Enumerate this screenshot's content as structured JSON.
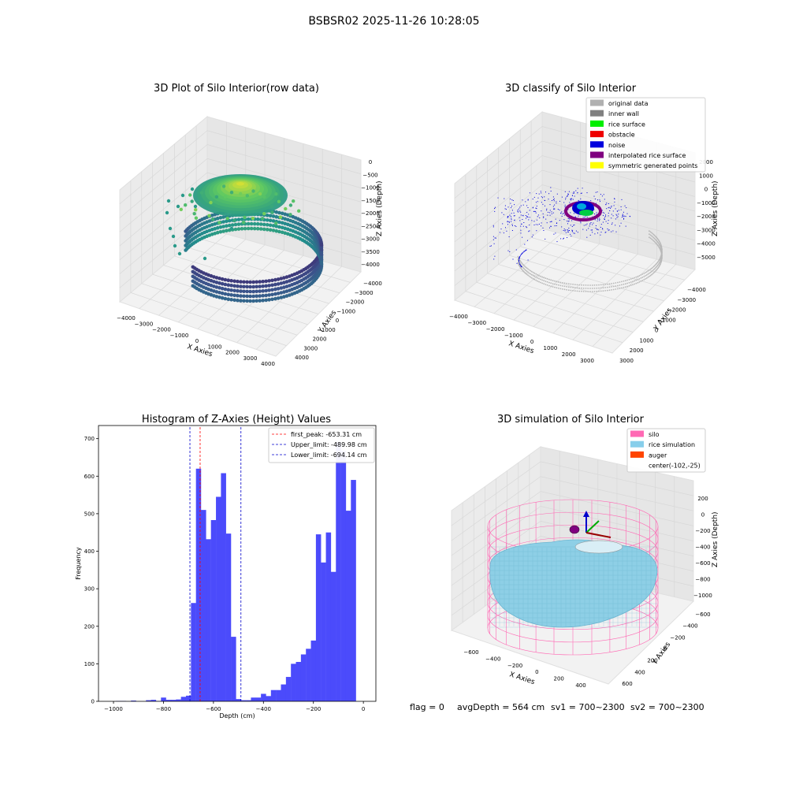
{
  "figure": {
    "suptitle": "BSBSR02 2025-11-26 10:28:05",
    "status": {
      "flag": "flag = 0",
      "avg_depth": "avgDepth = 564 cm",
      "sv1": "sv1 = 700~2300",
      "sv2": "sv2 = 700~2300"
    }
  },
  "chart_data": [
    {
      "type": "scatter3d",
      "title": "3D Plot of Silo Interior(row data)",
      "xlabel": "X Axies",
      "ylabel": "Y Axies",
      "zlabel": "Z Axies (Depth)",
      "x_ticks": [
        "−4000",
        "−3000",
        "−2000",
        "−1000",
        "0",
        "1000",
        "2000",
        "3000",
        "4000"
      ],
      "y_ticks": [
        "−4000",
        "−3000",
        "−2000",
        "−1000",
        "0",
        "1000",
        "2000",
        "3000",
        "4000"
      ],
      "z_ticks": [
        "0",
        "−500",
        "−1000",
        "−1500",
        "−2000",
        "−2500",
        "−3000",
        "−3500",
        "−4000"
      ],
      "xlim": [
        -4000,
        4000
      ],
      "ylim": [
        -4000,
        4000
      ],
      "zlim": [
        -4000,
        0
      ],
      "colormap": "viridis",
      "description_series": [
        {
          "part": "inner wall ring",
          "z_range": [
            -4000,
            -3000
          ],
          "radius": 3500
        },
        {
          "part": "rice surface mound",
          "z_range": [
            -1200,
            -300
          ]
        }
      ]
    },
    {
      "type": "scatter3d",
      "title": "3D classify of Silo Interior",
      "xlabel": "X Axies",
      "ylabel": "Y Axies",
      "zlabel": "Z Axies (Depth)",
      "x_ticks": [
        "−4000",
        "−3000",
        "−2000",
        "−1000",
        "0",
        "1000",
        "2000",
        "3000"
      ],
      "y_ticks": [
        "−4000",
        "−3000",
        "−2000",
        "−1000",
        "0",
        "1000",
        "2000",
        "3000"
      ],
      "z_ticks": [
        "2000",
        "1000",
        "0",
        "−1000",
        "−2000",
        "−3000",
        "−4000",
        "−5000"
      ],
      "legend": [
        {
          "name": "original data",
          "color": "#b0b0b0"
        },
        {
          "name": "inner wall",
          "color": "#808080"
        },
        {
          "name": "rice surface",
          "color": "#00ee00"
        },
        {
          "name": "obstacle",
          "color": "#ee0000"
        },
        {
          "name": "noise",
          "color": "#0000dd"
        },
        {
          "name": "interpolated rice surface",
          "color": "#800080"
        },
        {
          "name": "symmetric generated points",
          "color": "#ffff00"
        }
      ],
      "legend_position": "top-right"
    },
    {
      "type": "bar",
      "title": "Histogram of Z-Axies (Height) Values",
      "xlabel": "Depth (cm)",
      "ylabel": "Frequency",
      "xlim": [
        -1060,
        50
      ],
      "ylim": [
        0,
        735
      ],
      "x_ticks": [
        -1000,
        -800,
        -600,
        -400,
        -200,
        0
      ],
      "y_ticks": [
        0,
        100,
        200,
        300,
        400,
        500,
        600,
        700
      ],
      "bin_width": 20,
      "bins": [
        {
          "x": -980,
          "v": 1
        },
        {
          "x": -960,
          "v": 1
        },
        {
          "x": -920,
          "v": 2
        },
        {
          "x": -860,
          "v": 3
        },
        {
          "x": -840,
          "v": 4
        },
        {
          "x": -820,
          "v": 1
        },
        {
          "x": -800,
          "v": 10
        },
        {
          "x": -780,
          "v": 4
        },
        {
          "x": -760,
          "v": 4
        },
        {
          "x": -740,
          "v": 5
        },
        {
          "x": -720,
          "v": 12
        },
        {
          "x": -700,
          "v": 15
        },
        {
          "x": -680,
          "v": 262
        },
        {
          "x": -660,
          "v": 620
        },
        {
          "x": -640,
          "v": 510
        },
        {
          "x": -620,
          "v": 432
        },
        {
          "x": -600,
          "v": 483
        },
        {
          "x": -580,
          "v": 545
        },
        {
          "x": -560,
          "v": 608
        },
        {
          "x": -540,
          "v": 447
        },
        {
          "x": -520,
          "v": 172
        },
        {
          "x": -500,
          "v": 6
        },
        {
          "x": -480,
          "v": 3
        },
        {
          "x": -460,
          "v": 3
        },
        {
          "x": -440,
          "v": 10
        },
        {
          "x": -420,
          "v": 10
        },
        {
          "x": -400,
          "v": 20
        },
        {
          "x": -380,
          "v": 14
        },
        {
          "x": -360,
          "v": 30
        },
        {
          "x": -340,
          "v": 30
        },
        {
          "x": -320,
          "v": 45
        },
        {
          "x": -300,
          "v": 65
        },
        {
          "x": -280,
          "v": 100
        },
        {
          "x": -260,
          "v": 105
        },
        {
          "x": -240,
          "v": 125
        },
        {
          "x": -220,
          "v": 140
        },
        {
          "x": -200,
          "v": 162
        },
        {
          "x": -180,
          "v": 445
        },
        {
          "x": -160,
          "v": 370
        },
        {
          "x": -140,
          "v": 450
        },
        {
          "x": -120,
          "v": 345
        },
        {
          "x": -100,
          "v": 690
        },
        {
          "x": -80,
          "v": 668
        },
        {
          "x": -60,
          "v": 508
        },
        {
          "x": -40,
          "v": 590
        }
      ],
      "bar_color": "#4b4bfb",
      "vlines": [
        {
          "label": "first_peak: -653.31 cm",
          "x": -653.31,
          "color": "#ff0000"
        },
        {
          "label": "Upper_limit: -489.98 cm",
          "x": -489.98,
          "color": "#0000cc"
        },
        {
          "label": "Lower_limit: -694.14 cm",
          "x": -694.14,
          "color": "#0000cc"
        }
      ],
      "legend_position": "top-right"
    },
    {
      "type": "surface3d",
      "title": "3D simulation of Silo Interior",
      "xlabel": "X Axies",
      "ylabel": "Y Axies",
      "zlabel": "Z Axies (Depth)",
      "x_ticks": [
        "−600",
        "−400",
        "−200",
        "0",
        "200",
        "400"
      ],
      "y_ticks": [
        "−600",
        "−400",
        "−200",
        "0",
        "200",
        "400",
        "600"
      ],
      "z_ticks": [
        "200",
        "0",
        "−200",
        "−400",
        "−600",
        "−800",
        "−1000"
      ],
      "legend": [
        {
          "name": "silo",
          "color": "#ff69b4"
        },
        {
          "name": "rice simulation",
          "color": "#87ceeb"
        },
        {
          "name": "auger",
          "color": "#ff4500"
        },
        {
          "name": "center(-102,-25)",
          "color": ""
        }
      ],
      "legend_position": "top-right"
    }
  ]
}
